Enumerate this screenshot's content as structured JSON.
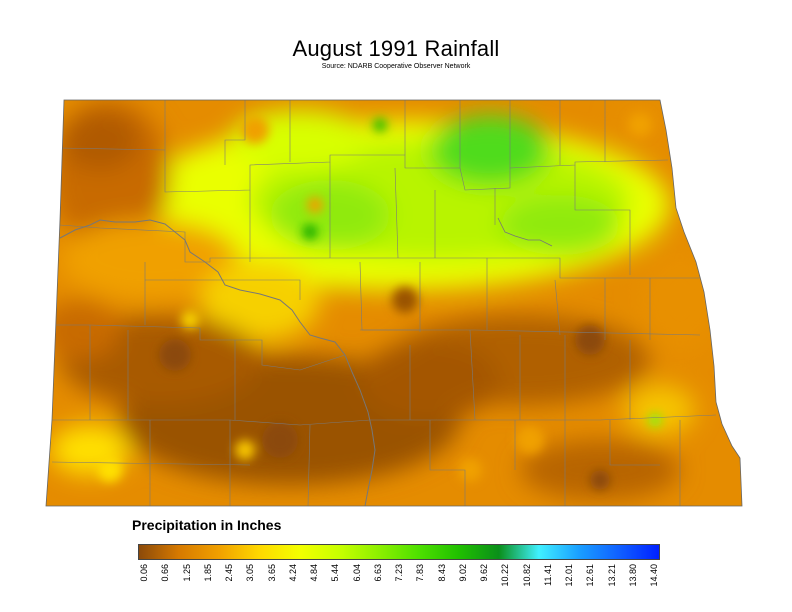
{
  "title": "August 1991 Rainfall",
  "source": "Source: NDARB Cooperative Observer Network",
  "legend": {
    "title": "Precipitation in Inches",
    "ticks": [
      "0.06",
      "0.66",
      "1.25",
      "1.85",
      "2.45",
      "3.05",
      "3.65",
      "4.24",
      "4.84",
      "5.44",
      "6.04",
      "6.63",
      "7.23",
      "7.83",
      "8.43",
      "9.02",
      "9.62",
      "10.22",
      "10.82",
      "11.41",
      "12.01",
      "12.61",
      "13.21",
      "13.80",
      "14.40"
    ],
    "colors": [
      "#8b4a0a",
      "#d77a00",
      "#f0a000",
      "#ffd800",
      "#f4ff00",
      "#c8ff00",
      "#8cf000",
      "#4ee000",
      "#20c000",
      "#0a8f1a",
      "#40f0ff",
      "#1a9fff",
      "#1060ff",
      "#0020ff"
    ]
  },
  "map": {
    "region": "North Dakota",
    "colors": {
      "dry": "#9a5206",
      "dry_mid": "#c86b00",
      "moderate": "#e58c00",
      "mid": "#f6c400",
      "wet": "#eaff00",
      "wetter": "#b8f400",
      "wettest": "#50dc1a"
    }
  }
}
